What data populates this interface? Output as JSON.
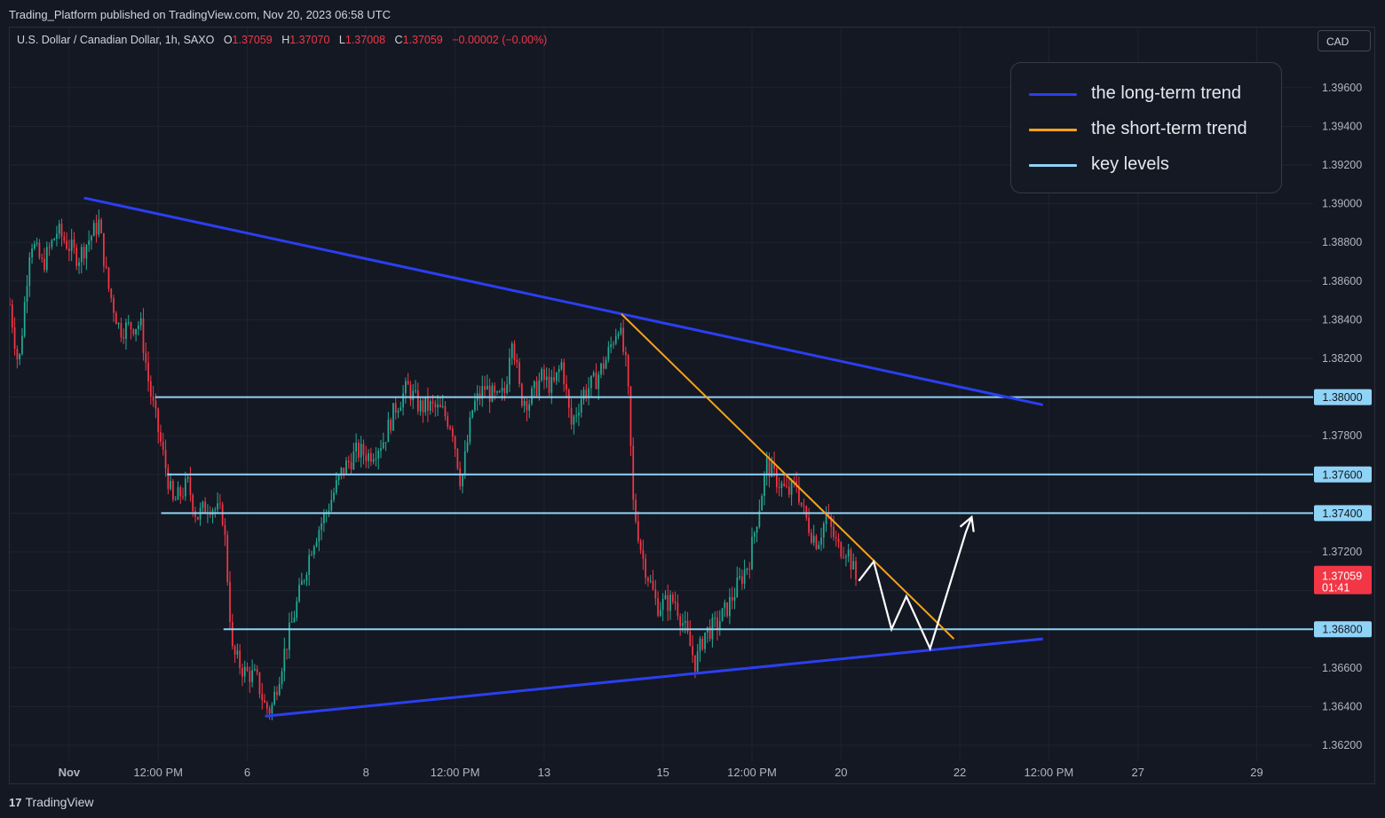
{
  "header": {
    "published": "Trading_Platform published on TradingView.com, Nov 20, 2023 06:58 UTC",
    "symbol": "U.S. Dollar / Canadian Dollar, 1h, SAXO",
    "ohlc": {
      "o_label": "O",
      "o_value": "1.37059",
      "h_label": "H",
      "h_value": "1.37070",
      "l_label": "L",
      "l_value": "1.37008",
      "c_label": "C",
      "c_value": "1.37059",
      "change": "−0.00002 (−0.00%)"
    },
    "currency": "CAD"
  },
  "footer": {
    "brand": "TradingView"
  },
  "legend": {
    "items": [
      {
        "label": "the long-term trend",
        "color": "#2b3ff0"
      },
      {
        "label": "the short-term trend",
        "color": "#f7a21b"
      },
      {
        "label": "key levels",
        "color": "#8fd3f6"
      }
    ]
  },
  "chart_data": {
    "type": "candlestick",
    "symbol": "USDCAD",
    "interval": "1h",
    "ylim": [
      1.361,
      1.3975
    ],
    "y_ticks": [
      1.362,
      1.364,
      1.366,
      1.368,
      1.37,
      1.372,
      1.374,
      1.376,
      1.378,
      1.38,
      1.382,
      1.384,
      1.386,
      1.388,
      1.39,
      1.392,
      1.394,
      1.396
    ],
    "y_tick_labels": [
      "1.36200",
      "1.36400",
      "1.36600",
      "1.36800",
      "1.37000",
      "1.37200",
      "1.37400",
      "1.37600",
      "1.37800",
      "1.38000",
      "1.38200",
      "1.38400",
      "1.38600",
      "1.38800",
      "1.39000",
      "1.39200",
      "1.39400",
      "1.39600"
    ],
    "x_ticks": [
      {
        "label": "Nov",
        "t": 1.0
      },
      {
        "label": "12:00 PM",
        "t": 2.5
      },
      {
        "label": "6",
        "t": 4.0
      },
      {
        "label": "8",
        "t": 6.0
      },
      {
        "label": "12:00 PM",
        "t": 7.5
      },
      {
        "label": "13",
        "t": 9.0
      },
      {
        "label": "15",
        "t": 11.0
      },
      {
        "label": "12:00 PM",
        "t": 12.5
      },
      {
        "label": "20",
        "t": 14.0
      },
      {
        "label": "22",
        "t": 16.0
      },
      {
        "label": "12:00 PM",
        "t": 17.5
      },
      {
        "label": "27",
        "t": 19.0
      },
      {
        "label": "29",
        "t": 21.0
      }
    ],
    "price_waypoints": [
      [
        0.0,
        1.3848
      ],
      [
        0.15,
        1.3815
      ],
      [
        0.35,
        1.3882
      ],
      [
        0.55,
        1.3868
      ],
      [
        0.8,
        1.3886
      ],
      [
        1.15,
        1.3872
      ],
      [
        1.5,
        1.389
      ],
      [
        1.65,
        1.3858
      ],
      [
        1.85,
        1.3835
      ],
      [
        2.2,
        1.3838
      ],
      [
        2.35,
        1.3805
      ],
      [
        2.55,
        1.3775
      ],
      [
        2.75,
        1.3745
      ],
      [
        3.0,
        1.3755
      ],
      [
        3.15,
        1.3738
      ],
      [
        3.35,
        1.3745
      ],
      [
        3.6,
        1.3738
      ],
      [
        3.75,
        1.3668
      ],
      [
        3.95,
        1.3658
      ],
      [
        4.15,
        1.3655
      ],
      [
        4.3,
        1.364
      ],
      [
        4.4,
        1.3638
      ],
      [
        4.6,
        1.3665
      ],
      [
        4.85,
        1.3695
      ],
      [
        5.1,
        1.3725
      ],
      [
        5.35,
        1.3742
      ],
      [
        5.6,
        1.3762
      ],
      [
        5.85,
        1.3772
      ],
      [
        6.05,
        1.377
      ],
      [
        6.3,
        1.3778
      ],
      [
        6.5,
        1.3795
      ],
      [
        6.7,
        1.3805
      ],
      [
        6.9,
        1.3795
      ],
      [
        7.1,
        1.3795
      ],
      [
        7.3,
        1.3792
      ],
      [
        7.45,
        1.3785
      ],
      [
        7.6,
        1.3755
      ],
      [
        7.8,
        1.3795
      ],
      [
        8.0,
        1.3805
      ],
      [
        8.2,
        1.3798
      ],
      [
        8.35,
        1.3803
      ],
      [
        8.45,
        1.3835
      ],
      [
        8.6,
        1.38
      ],
      [
        8.75,
        1.3798
      ],
      [
        8.95,
        1.381
      ],
      [
        9.15,
        1.3805
      ],
      [
        9.3,
        1.3818
      ],
      [
        9.45,
        1.3785
      ],
      [
        9.65,
        1.3802
      ],
      [
        9.85,
        1.3808
      ],
      [
        10.05,
        1.382
      ],
      [
        10.25,
        1.3838
      ],
      [
        10.4,
        1.3812
      ],
      [
        10.5,
        1.3745
      ],
      [
        10.65,
        1.3718
      ],
      [
        10.9,
        1.3692
      ],
      [
        11.2,
        1.3695
      ],
      [
        11.35,
        1.3682
      ],
      [
        11.55,
        1.3662
      ],
      [
        11.7,
        1.3678
      ],
      [
        11.9,
        1.3682
      ],
      [
        12.1,
        1.3692
      ],
      [
        12.25,
        1.3702
      ],
      [
        12.45,
        1.3715
      ],
      [
        12.6,
        1.374
      ],
      [
        12.75,
        1.3765
      ],
      [
        12.9,
        1.3758
      ],
      [
        13.1,
        1.375
      ],
      [
        13.25,
        1.3755
      ],
      [
        13.35,
        1.3742
      ],
      [
        13.5,
        1.373
      ],
      [
        13.6,
        1.3725
      ],
      [
        13.75,
        1.3738
      ],
      [
        13.95,
        1.3722
      ],
      [
        14.1,
        1.3722
      ],
      [
        14.25,
        1.3706
      ]
    ],
    "key_levels": [
      {
        "price": 1.38,
        "label": "1.38000",
        "t_start": 2.45
      },
      {
        "price": 1.376,
        "label": "1.37600",
        "t_start": 2.65
      },
      {
        "price": 1.374,
        "label": "1.37400",
        "t_start": 2.55
      },
      {
        "price": 1.368,
        "label": "1.36800",
        "t_start": 3.6
      }
    ],
    "long_term_trend_lines": [
      {
        "from": [
          1.25,
          1.3903
        ],
        "to": [
          17.4,
          1.3796
        ]
      },
      {
        "from": [
          4.3,
          1.3635
        ],
        "to": [
          17.4,
          1.3675
        ]
      }
    ],
    "short_term_trend_line": {
      "from": [
        10.3,
        1.3843
      ],
      "to": [
        15.9,
        1.3675
      ]
    },
    "projection_path": [
      [
        14.3,
        1.3705
      ],
      [
        14.55,
        1.3715
      ],
      [
        14.85,
        1.368
      ],
      [
        15.1,
        1.3697
      ],
      [
        15.5,
        1.367
      ],
      [
        16.1,
        1.373
      ],
      [
        16.2,
        1.3738
      ]
    ],
    "current_price": {
      "label": "1.37059",
      "countdown": "01:41",
      "price": 1.37059
    }
  }
}
